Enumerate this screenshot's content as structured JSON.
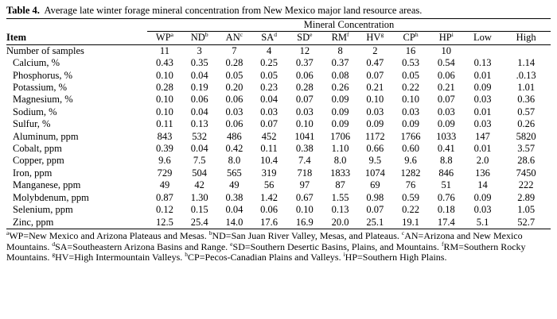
{
  "title_label": "Table 4.",
  "title_text": "Average late winter forage mineral concentration from New Mexico major land resource areas.",
  "header": {
    "item": "Item",
    "group": "Mineral Concentration",
    "columns": [
      {
        "name": "WP",
        "sup": "a"
      },
      {
        "name": "ND",
        "sup": "b"
      },
      {
        "name": "AN",
        "sup": "c"
      },
      {
        "name": "SA",
        "sup": "d"
      },
      {
        "name": "SD",
        "sup": "e"
      },
      {
        "name": "RM",
        "sup": "f"
      },
      {
        "name": "HV",
        "sup": "g"
      },
      {
        "name": "CP",
        "sup": "h"
      },
      {
        "name": "HP",
        "sup": "i"
      },
      {
        "name": "Low",
        "sup": ""
      },
      {
        "name": "High",
        "sup": ""
      }
    ]
  },
  "rows": [
    {
      "label": "Number of samples",
      "values": [
        "11",
        "3",
        "7",
        "4",
        "12",
        "8",
        "2",
        "16",
        "10",
        "",
        ""
      ]
    },
    {
      "label": "Calcium, %",
      "values": [
        "0.43",
        "0.35",
        "0.28",
        "0.25",
        "0.37",
        "0.37",
        "0.47",
        "0.53",
        "0.54",
        "0.13",
        "1.14"
      ]
    },
    {
      "label": "Phosphorus, %",
      "values": [
        "0.10",
        "0.04",
        "0.05",
        "0.05",
        "0.06",
        "0.08",
        "0.07",
        "0.05",
        "0.06",
        "0.01",
        ".0.13"
      ]
    },
    {
      "label": "Potassium, %",
      "values": [
        "0.28",
        "0.19",
        "0.20",
        "0.23",
        "0.28",
        "0.26",
        "0.21",
        "0.22",
        "0.21",
        "0.09",
        "1.01"
      ]
    },
    {
      "label": "Magnesium, %",
      "values": [
        "0.10",
        "0.06",
        "0.06",
        "0.04",
        "0.07",
        "0.09",
        "0.10",
        "0.10",
        "0.07",
        "0.03",
        "0.36"
      ]
    },
    {
      "label": "Sodium, %",
      "values": [
        "0.10",
        "0.04",
        "0.03",
        "0.03",
        "0.03",
        "0.09",
        "0.03",
        "0.03",
        "0.03",
        "0.01",
        "0.57"
      ]
    },
    {
      "label": "Sulfur, %",
      "values": [
        "0.11",
        "0.13",
        "0.06",
        "0.07",
        "0.10",
        "0.09",
        "0.09",
        "0.09",
        "0.09",
        "0.03",
        "0.26"
      ]
    },
    {
      "label": "Aluminum, ppm",
      "values": [
        "843",
        "532",
        "486",
        "452",
        "1041",
        "1706",
        "1172",
        "1766",
        "1033",
        "147",
        "5820"
      ]
    },
    {
      "label": "Cobalt, ppm",
      "values": [
        "0.39",
        "0.04",
        "0.42",
        "0.11",
        "0.38",
        "1.10",
        "0.66",
        "0.60",
        "0.41",
        "0.01",
        "3.57"
      ]
    },
    {
      "label": "Copper, ppm",
      "values": [
        "9.6",
        "7.5",
        "8.0",
        "10.4",
        "7.4",
        "8.0",
        "9.5",
        "9.6",
        "8.8",
        "2.0",
        "28.6"
      ]
    },
    {
      "label": "Iron, ppm",
      "values": [
        "729",
        "504",
        "565",
        "319",
        "718",
        "1833",
        "1074",
        "1282",
        "846",
        "136",
        "7450"
      ]
    },
    {
      "label": "Manganese, ppm",
      "values": [
        "49",
        "42",
        "49",
        "56",
        "97",
        "87",
        "69",
        "76",
        "51",
        "14",
        "222"
      ]
    },
    {
      "label": "Molybdenum, ppm",
      "values": [
        "0.87",
        "1.30",
        "0.38",
        "1.42",
        "0.67",
        "1.55",
        "0.98",
        "0.59",
        "0.76",
        "0.09",
        "2.89"
      ]
    },
    {
      "label": "Selenium, ppm",
      "values": [
        "0.12",
        "0.15",
        "0.04",
        "0.06",
        "0.10",
        "0.13",
        "0.07",
        "0.22",
        "0.18",
        "0.03",
        "1.05"
      ]
    },
    {
      "label": "Zinc, ppm",
      "values": [
        "12.5",
        "25.4",
        "14.0",
        "17.6",
        "16.9",
        "20.0",
        "25.1",
        "19.1",
        "17.4",
        "5.1",
        "52.7"
      ]
    }
  ],
  "footnotes": [
    {
      "sup": "a",
      "text": "WP=New Mexico and Arizona Plateaus and Mesas. "
    },
    {
      "sup": "b",
      "text": "ND=San Juan River Valley, Mesas, and Plateaus. "
    },
    {
      "sup": "c",
      "text": "AN=Arizona and New Mexico Mountains. "
    },
    {
      "sup": "d",
      "text": "SA=Southeastern Arizona Basins and Range. "
    },
    {
      "sup": "e",
      "text": "SD=Southern Desertic Basins, Plains, and Mountains. "
    },
    {
      "sup": "f",
      "text": "RM=Southern Rocky Mountains. "
    },
    {
      "sup": "g",
      "text": "HV=High Intermountain Valleys. "
    },
    {
      "sup": "h",
      "text": "CP=Pecos-Canadian Plains and Valleys. "
    },
    {
      "sup": "i",
      "text": "HP=Southern High Plains."
    }
  ]
}
